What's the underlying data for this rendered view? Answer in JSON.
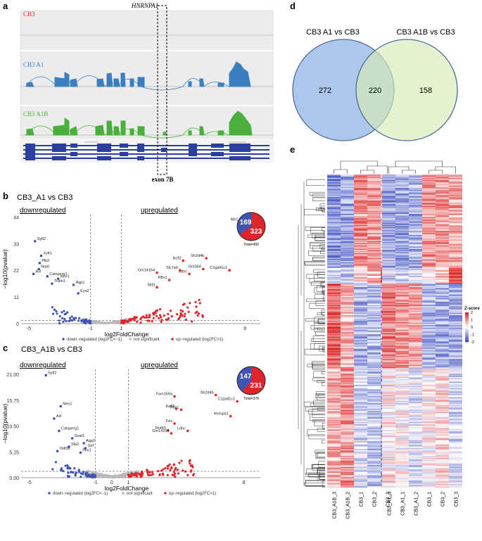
{
  "panels": {
    "a": "a",
    "b": "b",
    "c": "c",
    "d": "d",
    "e": "e"
  },
  "panel_a": {
    "gene": "HNRNPA1",
    "tracks": [
      {
        "label": "CB3",
        "color": "#e8262a"
      },
      {
        "label": "CB3 A1",
        "color": "#3a7fc0"
      },
      {
        "label": "CB3 A1B",
        "color": "#4aaf3c"
      }
    ],
    "exon_label": "exon 7B"
  },
  "panel_d": {
    "sets": [
      {
        "label": "CB3 A1 vs CB3",
        "color": "#9dbde6"
      },
      {
        "label": "CB3 A1B vs CB3",
        "color": "#d6ebb6"
      }
    ],
    "left_only": "272",
    "overlap": "220",
    "right_only": "158"
  },
  "chart_data": [
    {
      "type": "scatter",
      "panel": "b",
      "title": "CB3_A1 vs CB3",
      "xlabel": "log2FoldChange",
      "ylabel": "−log10(pvalue)",
      "xlim": [
        -5.5,
        10
      ],
      "ylim": [
        0,
        45
      ],
      "x_ticks": [
        "-5",
        "-1",
        "1",
        "9"
      ],
      "y_ticks": [
        "0",
        "11",
        "22",
        "33",
        "44"
      ],
      "region_labels": [
        "downregulated",
        "upregulated"
      ],
      "legend": [
        "down−regulated (log2FC<−1)",
        "not significant",
        "up−regulated (log2FC>1)"
      ],
      "colors": {
        "down": "#3f55b5",
        "ns": "#b8b8b8",
        "up": "#e0242b"
      },
      "pie": {
        "down": 169,
        "up": 323,
        "total_label": "Total=492"
      },
      "labeled_points": [
        {
          "name": "Sytl2",
          "x": -4.6,
          "y": 34
        },
        {
          "name": "Xylt1",
          "x": -4.2,
          "y": 28
        },
        {
          "name": "Plk2",
          "x": -4.3,
          "y": 25
        },
        {
          "name": "Nrp6",
          "x": -4.35,
          "y": 22.5
        },
        {
          "name": "Axl",
          "x": -4.7,
          "y": 20.5
        },
        {
          "name": "Catsperg1",
          "x": -3.8,
          "y": 19.5
        },
        {
          "name": "Neo1",
          "x": -3.1,
          "y": 18.5
        },
        {
          "name": "Tcam1",
          "x": -3.5,
          "y": 16.5
        },
        {
          "name": "Aqp1",
          "x": -2.1,
          "y": 16
        },
        {
          "name": "Eya2",
          "x": -1.8,
          "y": 12.5
        },
        {
          "name": "Me1",
          "x": 8.7,
          "y": 42
        },
        {
          "name": "Sh2d4b",
          "x": 6.5,
          "y": 27
        },
        {
          "name": "Ikzf2",
          "x": 5.0,
          "y": 26
        },
        {
          "name": "Gm364",
          "x": 6.3,
          "y": 22.5
        },
        {
          "name": "Slc7a6",
          "x": 4.8,
          "y": 22
        },
        {
          "name": "Gm14164",
          "x": 3.3,
          "y": 21
        },
        {
          "name": "C1galt1c1",
          "x": 8.0,
          "y": 22
        },
        {
          "name": "Ldhc",
          "x": 5.4,
          "y": 20.5
        },
        {
          "name": "Rfln1",
          "x": 4.1,
          "y": 18
        },
        {
          "name": "Slit3",
          "x": 3.3,
          "y": 15
        }
      ]
    },
    {
      "type": "scatter",
      "panel": "c",
      "title": "CB3_A1B vs CB3",
      "xlabel": "log2FoldChange",
      "ylabel": "−log10(pvalue)",
      "xlim": [
        -5.5,
        9
      ],
      "ylim": [
        0,
        22
      ],
      "x_ticks": [
        "-5",
        "-1",
        "0",
        "1",
        "8"
      ],
      "y_ticks": [
        "0.00",
        "5.25",
        "10.50",
        "15.75",
        "21.00"
      ],
      "region_labels": [
        "downregulated",
        "upregulated"
      ],
      "legend": [
        "down−regulated (log2FC<−1)",
        "not significant",
        "up−regulated (log2FC>1)"
      ],
      "colors": {
        "down": "#3f55b5",
        "ns": "#b8b8b8",
        "up": "#e0242b"
      },
      "pie": {
        "down": 147,
        "up": 231,
        "total_label": "Total=378"
      },
      "labeled_points": [
        {
          "name": "Sytl2",
          "x": -4.0,
          "y": 20.8
        },
        {
          "name": "Neo1",
          "x": -3.1,
          "y": 14.5
        },
        {
          "name": "Axl",
          "x": -3.5,
          "y": 12
        },
        {
          "name": "Catsperg1",
          "x": -3.2,
          "y": 9.5
        },
        {
          "name": "Soat1",
          "x": -2.4,
          "y": 8
        },
        {
          "name": "Aqp2",
          "x": -1.7,
          "y": 7
        },
        {
          "name": "Sla2",
          "x": -2.6,
          "y": 6.3
        },
        {
          "name": "Gsf",
          "x": -1.6,
          "y": 6
        },
        {
          "name": "Odf3b",
          "x": -3.3,
          "y": 5.4
        },
        {
          "name": "Pkx1",
          "x": -1.9,
          "y": 5.1
        },
        {
          "name": "Fam169a",
          "x": 3.8,
          "y": 16.5
        },
        {
          "name": "Sh2d4b",
          "x": 6.3,
          "y": 16.8
        },
        {
          "name": "C1galt1c1",
          "x": 7.6,
          "y": 15.5
        },
        {
          "name": "Ikzf2",
          "x": 3.9,
          "y": 14
        },
        {
          "name": "Rfln1",
          "x": 4.2,
          "y": 13.8
        },
        {
          "name": "Hnrnpa1",
          "x": 7.2,
          "y": 12.5
        },
        {
          "name": "Fes",
          "x": 3.8,
          "y": 11
        },
        {
          "name": "Ldhc",
          "x": 4.6,
          "y": 9.5
        },
        {
          "name": "Rnf43",
          "x": 3.4,
          "y": 9.6
        },
        {
          "name": "Gm14164",
          "x": 3.6,
          "y": 9
        }
      ]
    },
    {
      "type": "heatmap",
      "panel": "e",
      "columns_left": [
        "CB3_A1B_3",
        "CB3_A1B_2",
        "CB3_1",
        "CB3_2",
        "CB3_3"
      ],
      "columns_right": [
        "CB3_A1_3",
        "CB3_A1_1",
        "CB3_A1_2",
        "CB3_1",
        "CB3_2",
        "CB3_3"
      ],
      "legend_title": "Z-score",
      "legend_ticks": [
        "2",
        "1",
        "0",
        "-1",
        "-2"
      ],
      "color_range": [
        "#3b4cc0",
        "#ffffff",
        "#dd2a2a"
      ]
    }
  ]
}
